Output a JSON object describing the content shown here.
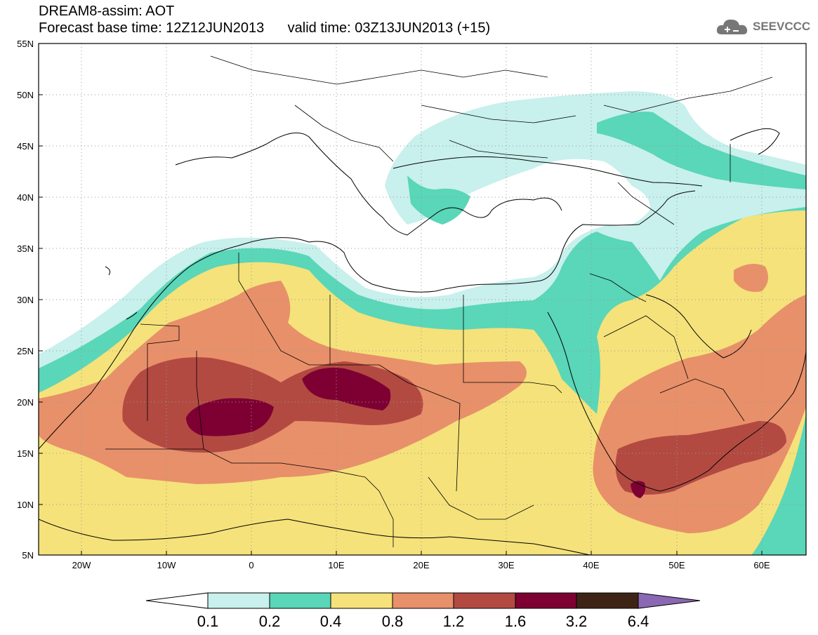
{
  "header": {
    "title": "DREAM8-assim: AOT",
    "base_time": "Forecast base time: 12Z12JUN2013",
    "valid_time": "valid time: 03Z13JUN2013 (+15)"
  },
  "logo": {
    "text": "SEEVCCC",
    "icon": "cloud-icon"
  },
  "map": {
    "lon_range": [
      -25,
      65
    ],
    "lat_range": [
      5,
      55
    ],
    "lon_ticks": [
      "20W",
      "10W",
      "0",
      "10E",
      "20E",
      "30E",
      "40E",
      "50E",
      "60E"
    ],
    "lat_ticks": [
      "55N",
      "50N",
      "45N",
      "40N",
      "35N",
      "30N",
      "25N",
      "20N",
      "15N",
      "10N",
      "5N"
    ],
    "grid": "dotted",
    "variable": "Aerosol optical thickness (AOT)"
  },
  "colorbar": {
    "levels": [
      "0.1",
      "0.2",
      "0.4",
      "0.8",
      "1.2",
      "1.6",
      "3.2",
      "6.4"
    ],
    "colors": [
      "#ffffff",
      "#c8f0ec",
      "#5ad6b8",
      "#f5e27a",
      "#e8906a",
      "#b24a42",
      "#7e0032",
      "#3e2416",
      "#8a68b4"
    ]
  }
}
